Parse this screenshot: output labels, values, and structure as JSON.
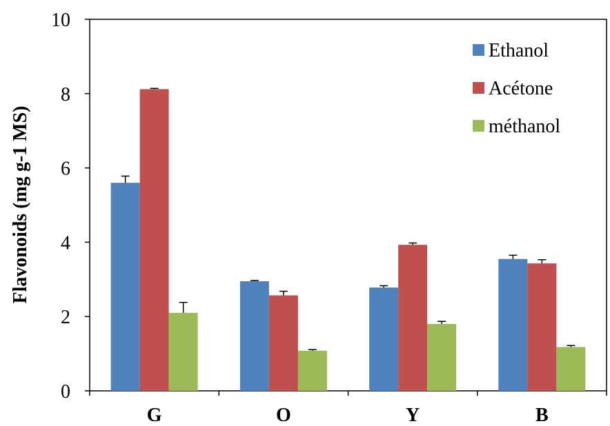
{
  "chart_data": {
    "type": "bar",
    "title": "",
    "xlabel": "",
    "ylabel": "Flavonoids (mg g-1 MS)",
    "ylim": [
      0,
      10
    ],
    "yticks": [
      0,
      2,
      4,
      6,
      8,
      10
    ],
    "grid": false,
    "legend_position": "top-right",
    "categories": [
      "G",
      "O",
      "Y",
      "B"
    ],
    "series": [
      {
        "name": "Ethanol",
        "color": "#4F81BD",
        "values": [
          5.6,
          2.95,
          2.78,
          3.55
        ],
        "errors": [
          0.18,
          0.02,
          0.05,
          0.1
        ]
      },
      {
        "name": "Acétone",
        "color": "#C0504D",
        "values": [
          8.12,
          2.57,
          3.93,
          3.43
        ],
        "errors": [
          0.02,
          0.11,
          0.05,
          0.1
        ]
      },
      {
        "name": "méthanol",
        "color": "#9BBB59",
        "values": [
          2.1,
          1.08,
          1.8,
          1.18
        ],
        "errors": [
          0.28,
          0.03,
          0.07,
          0.04
        ]
      }
    ]
  }
}
